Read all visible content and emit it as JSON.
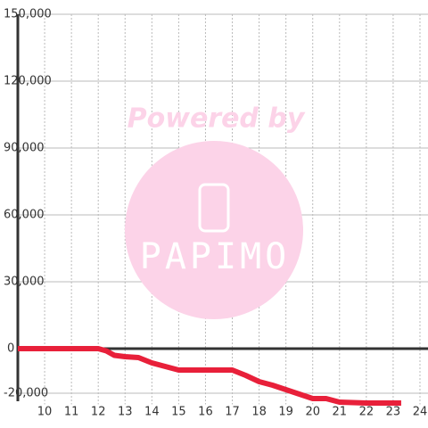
{
  "chart_data": {
    "type": "line",
    "x": [
      9,
      12,
      12.3,
      12.6,
      13,
      13.5,
      14,
      14.5,
      15,
      16,
      17,
      17.5,
      18,
      18.5,
      19,
      19.5,
      20,
      20.5,
      21,
      22,
      23.3
    ],
    "series": [
      {
        "color": "#e8203a",
        "values": [
          0,
          0,
          -1000,
          -3000,
          -3600,
          -4000,
          -6400,
          -8000,
          -9600,
          -9600,
          -9600,
          -12000,
          -14800,
          -16400,
          -18400,
          -20400,
          -22400,
          -22400,
          -24000,
          -24400,
          -24400
        ]
      }
    ],
    "xlim": [
      9,
      24.3
    ],
    "xticks": [
      10,
      11,
      12,
      13,
      14,
      15,
      16,
      17,
      18,
      19,
      20,
      21,
      22,
      23,
      24
    ],
    "ylim": [
      -25000,
      150000
    ],
    "yticks": [
      {
        "value": -20000,
        "label": "-20,000"
      },
      0,
      {
        "value": 30000,
        "label": "30,000"
      },
      {
        "value": 60000,
        "label": "60,000"
      },
      {
        "value": 90000,
        "label": "90,000"
      },
      {
        "value": 120000,
        "label": "120,000"
      },
      {
        "value": 150000,
        "label": "150,000"
      }
    ],
    "grid": true,
    "watermark": {
      "line1": "Powered by",
      "line2": "PAPIMO"
    }
  }
}
